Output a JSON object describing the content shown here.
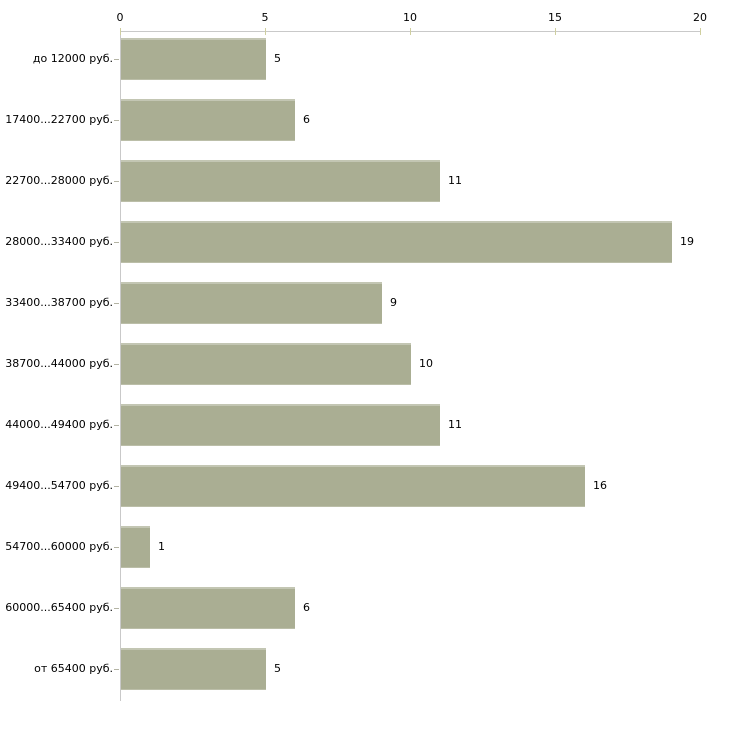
{
  "chart_data": {
    "type": "bar",
    "orientation": "horizontal",
    "title": "",
    "xlabel": "",
    "ylabel": "",
    "categories": [
      "до 12000 руб.",
      "17400...22700 руб.",
      "22700...28000 руб.",
      "28000...33400 руб.",
      "33400...38700 руб.",
      "38700...44000 руб.",
      "44000...49400 руб.",
      "49400...54700 руб.",
      "54700...60000 руб.",
      "60000...65400 руб.",
      "от 65400 руб."
    ],
    "values": [
      5,
      6,
      11,
      19,
      9,
      10,
      11,
      16,
      1,
      6,
      5
    ],
    "xlim": [
      0,
      20
    ],
    "x_ticks": [
      "0",
      "5",
      "10",
      "15",
      "20"
    ],
    "x_tick_values": [
      0,
      5,
      10,
      15,
      20
    ],
    "grid": false,
    "legend": null,
    "colors": {
      "bar_fill": "#aaae93",
      "axis_line": "#c9c9c9",
      "x_tick_mark": "#cfcf9f",
      "y_tick_mark": "#b4b4a4",
      "text": "#000000",
      "background": "#ffffff"
    }
  }
}
